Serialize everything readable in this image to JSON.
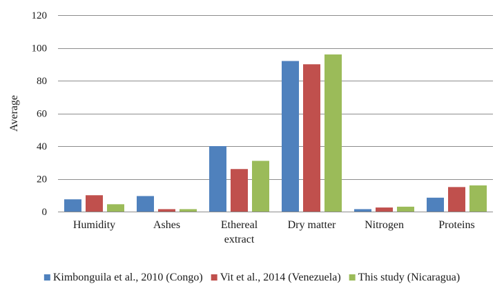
{
  "chart_data": {
    "type": "bar",
    "title": "",
    "xlabel": "",
    "ylabel": "Average",
    "ylim": [
      0,
      120
    ],
    "yticks": [
      0,
      20,
      40,
      60,
      80,
      100,
      120
    ],
    "grid": true,
    "legend_position": "bottom",
    "categories": [
      [
        "Humidity"
      ],
      [
        "Ashes"
      ],
      [
        "Ethereal",
        "extract"
      ],
      [
        "Dry matter"
      ],
      [
        "Nitrogen"
      ],
      [
        "Proteins"
      ]
    ],
    "series": [
      {
        "name": "Kimbonguila et al., 2010 (Congo)",
        "color": "#4f81bd",
        "values": [
          7.5,
          9.5,
          40,
          92,
          1.5,
          8.5
        ]
      },
      {
        "name": "Vit et al., 2014 (Venezuela)",
        "color": "#c0504d",
        "values": [
          10,
          1.5,
          26,
          90,
          2.5,
          15
        ]
      },
      {
        "name": "This study (Nicaragua)",
        "color": "#9bbb59",
        "values": [
          4.5,
          1.5,
          31,
          96,
          3,
          16
        ]
      }
    ]
  }
}
